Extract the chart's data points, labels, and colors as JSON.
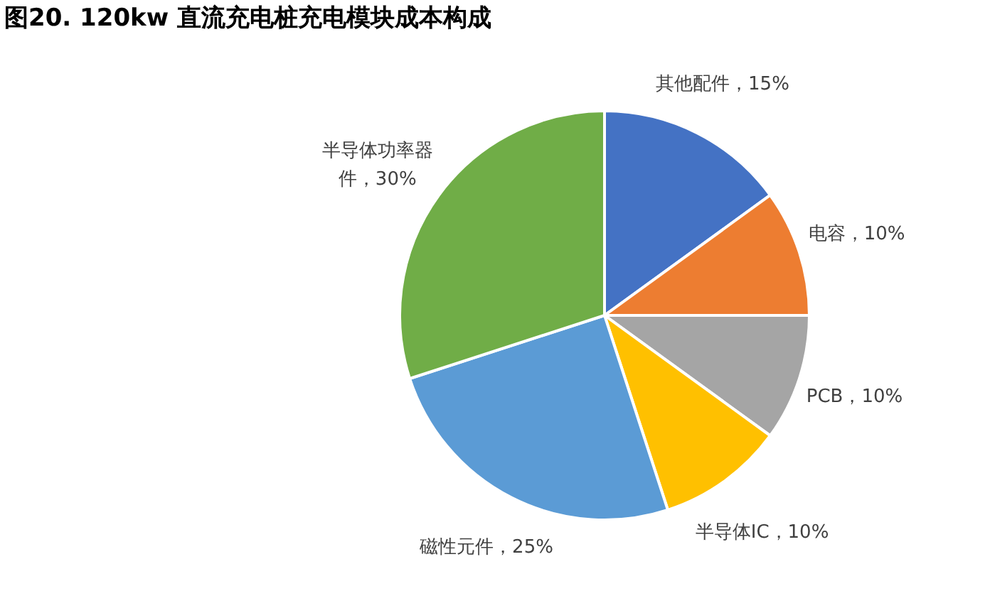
{
  "chart_data": {
    "type": "pie",
    "title": "图20. 120kw 直流充电桩充电模块成本构成",
    "categories": [
      "其他配件",
      "电容",
      "PCB",
      "半导体IC",
      "磁性元件",
      "半导体功率器件"
    ],
    "values": [
      15,
      10,
      10,
      10,
      25,
      30
    ],
    "value_labels": [
      "15%",
      "10%",
      "10%",
      "10%",
      "25%",
      "30%"
    ],
    "colors": [
      "#4472c4",
      "#ed7d31",
      "#a5a5a5",
      "#ffc000",
      "#5b9bd5",
      "#70ad47"
    ],
    "legend": false
  }
}
